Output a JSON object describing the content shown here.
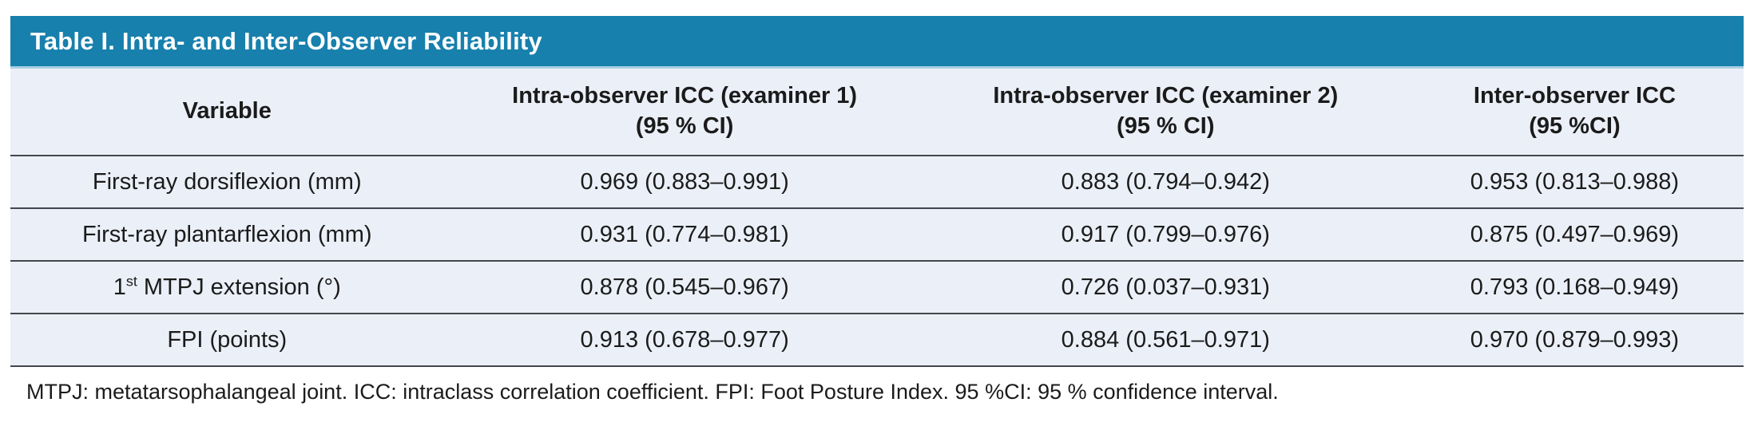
{
  "colors": {
    "title_bar_bg": "#1780ad",
    "title_bar_underline": "#a9cfe2",
    "row_bg": "#ebeff7",
    "divider_line": "#42474d",
    "title_text": "#ffffff",
    "body_text": "#1b1b1b"
  },
  "table": {
    "title": "Table I. Intra- and Inter-Observer Reliability",
    "columns": [
      {
        "label": "Variable"
      },
      {
        "label": "Intra-observer ICC (examiner 1)",
        "sub": "(95 % CI)"
      },
      {
        "label": "Intra-observer ICC (examiner 2)",
        "sub": "(95 % CI)"
      },
      {
        "label": "Inter-observer ICC",
        "sub": "(95 %CI)"
      }
    ],
    "rows": [
      {
        "variable": "First-ray dorsiflexion (mm)",
        "intra_icc_examiner1": "0.969 (0.883–0.991)",
        "intra_icc_examiner2": "0.883 (0.794–0.942)",
        "inter_icc": "0.953 (0.813–0.988)"
      },
      {
        "variable": "First-ray plantarflexion (mm)",
        "intra_icc_examiner1": "0.931 (0.774–0.981)",
        "intra_icc_examiner2": "0.917 (0.799–0.976)",
        "inter_icc": "0.875 (0.497–0.969)"
      },
      {
        "variable_parts": {
          "base": "1",
          "sup": "st",
          "rest": " MTPJ extension (°)"
        },
        "intra_icc_examiner1": "0.878 (0.545–0.967)",
        "intra_icc_examiner2": "0.726 (0.037–0.931)",
        "inter_icc": "0.793 (0.168–0.949)"
      },
      {
        "variable": "FPI (points)",
        "intra_icc_examiner1": "0.913 (0.678–0.977)",
        "intra_icc_examiner2": "0.884 (0.561–0.971)",
        "inter_icc": "0.970 (0.879–0.993)"
      }
    ],
    "footnote": "MTPJ: metatarsophalangeal joint. ICC: intraclass correlation coefficient. FPI: Foot Posture Index. 95 %CI: 95 % confidence interval."
  }
}
